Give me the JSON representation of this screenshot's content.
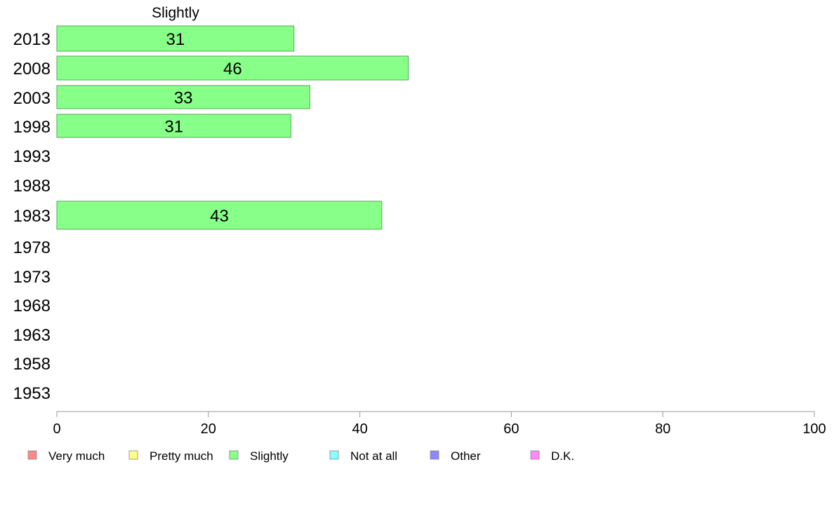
{
  "chart_data": {
    "type": "bar",
    "orientation": "horizontal",
    "title": "Slightly",
    "categories": [
      "2013",
      "2008",
      "2003",
      "1998",
      "1993",
      "1988",
      "1983",
      "1978",
      "1973",
      "1968",
      "1963",
      "1958",
      "1953"
    ],
    "series": [
      {
        "name": "Slightly",
        "color": "#88ff88",
        "values": [
          31.3,
          46.4,
          33.4,
          30.9,
          null,
          null,
          42.9,
          null,
          null,
          null,
          null,
          null,
          null
        ],
        "labels": [
          "31",
          "46",
          "33",
          "31",
          "",
          "",
          "43",
          "",
          "",
          "",
          "",
          "",
          ""
        ]
      }
    ],
    "xlim": [
      0,
      100
    ],
    "xticks": [
      "0",
      "20",
      "40",
      "60",
      "80",
      "100"
    ],
    "legend": {
      "position": "bottom",
      "items": [
        {
          "label": "Very much",
          "color": "#ff8888"
        },
        {
          "label": "Pretty much",
          "color": "#ffff88"
        },
        {
          "label": "Slightly",
          "color": "#88ff88"
        },
        {
          "label": "Not at all",
          "color": "#88ffff"
        },
        {
          "label": "Other",
          "color": "#8888ff"
        },
        {
          "label": "D.K.",
          "color": "#ff88ff"
        }
      ]
    }
  }
}
